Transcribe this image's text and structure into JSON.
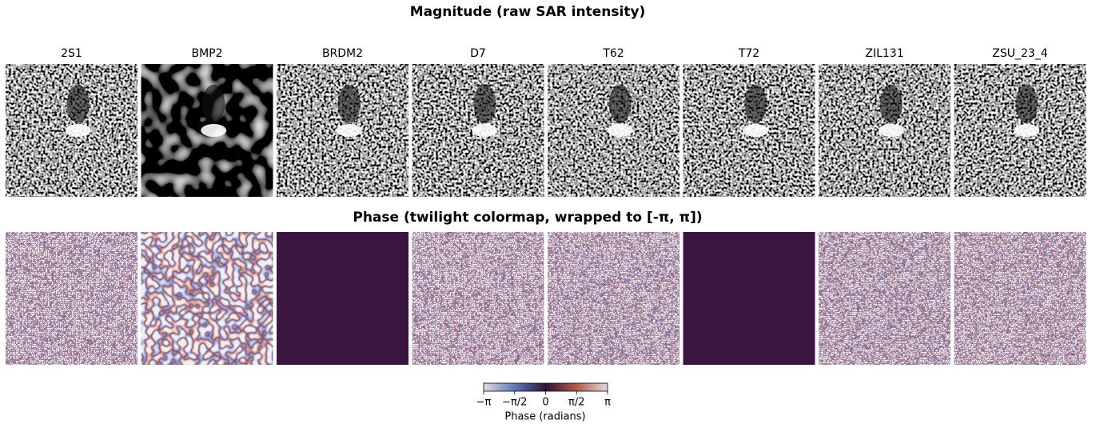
{
  "titles": {
    "magnitude": "Magnitude (raw SAR intensity)",
    "phase": "Phase (twilight colormap, wrapped to [-π, π])"
  },
  "classes": [
    "2S1",
    "BMP2",
    "BRDM2",
    "D7",
    "T62",
    "T72",
    "ZIL131",
    "ZSU_23_4"
  ],
  "colorbar": {
    "label": "Phase (radians)",
    "xlim": [
      -3.14159,
      3.14159
    ],
    "xticks": [
      {
        "value": -3.14159,
        "label": "−π"
      },
      {
        "value": -1.5708,
        "label": "−π/2"
      },
      0,
      {
        "value": 1.5708,
        "label": "π/2"
      },
      {
        "value": 3.14159,
        "label": "π"
      }
    ]
  }
}
